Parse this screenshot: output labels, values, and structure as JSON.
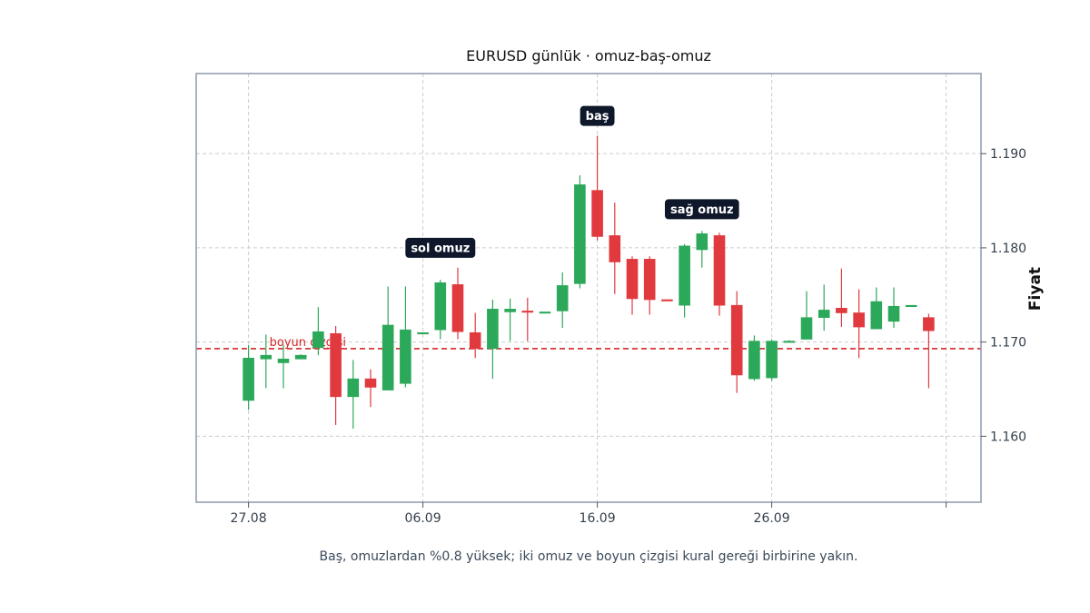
{
  "chart_data": {
    "type": "candlestick",
    "title": "EURUSD günlük · omuz-baş-omuz",
    "xlabel": "",
    "ylabel": "Fiyat",
    "caption": "Baş, omuzlardan %0.8 yüksek; iki omuz ve boyun çizgisi kural gereği birbirine yakın.",
    "x_ticks": [
      {
        "index": 0,
        "label": "27.08"
      },
      {
        "index": 10,
        "label": "06.09"
      },
      {
        "index": 20,
        "label": "16.09"
      },
      {
        "index": 30,
        "label": "26.09"
      },
      {
        "index": 40,
        "label": ""
      }
    ],
    "ylim": [
      1.153,
      1.1985
    ],
    "y_ticks": [
      1.16,
      1.17,
      1.18,
      1.19
    ],
    "y_tick_labels": [
      "1.160",
      "1.170",
      "1.180",
      "1.190"
    ],
    "xlim": [
      -3,
      42
    ],
    "grid": true,
    "neckline": {
      "value": 1.1693,
      "label": "boyun çizgisi",
      "color": "#d62728"
    },
    "annotations": [
      {
        "label": "sol omuz",
        "index": 11,
        "value": 1.18
      },
      {
        "label": "baş",
        "index": 20,
        "value": 1.194
      },
      {
        "label": "sağ omuz",
        "index": 26,
        "value": 1.1841
      }
    ],
    "colors": {
      "up": "#2ca85a",
      "down": "#e03a3e",
      "frame": "#8b98ad",
      "grid": "#cccccc",
      "annotation_bg": "#0f172a"
    },
    "candles": [
      {
        "o": 1.1638,
        "h": 1.1697,
        "l": 1.1628,
        "c": 1.1683
      },
      {
        "o": 1.1682,
        "h": 1.1708,
        "l": 1.1651,
        "c": 1.1686
      },
      {
        "o": 1.1678,
        "h": 1.1697,
        "l": 1.1651,
        "c": 1.1682
      },
      {
        "o": 1.1682,
        "h": 1.1687,
        "l": 1.1682,
        "c": 1.1686
      },
      {
        "o": 1.1694,
        "h": 1.1737,
        "l": 1.1686,
        "c": 1.1711
      },
      {
        "o": 1.1709,
        "h": 1.1717,
        "l": 1.1612,
        "c": 1.1642
      },
      {
        "o": 1.1642,
        "h": 1.1681,
        "l": 1.1608,
        "c": 1.1661
      },
      {
        "o": 1.1661,
        "h": 1.1671,
        "l": 1.1631,
        "c": 1.1652
      },
      {
        "o": 1.1649,
        "h": 1.1759,
        "l": 1.1649,
        "c": 1.1718
      },
      {
        "o": 1.1656,
        "h": 1.1759,
        "l": 1.1652,
        "c": 1.1713
      },
      {
        "o": 1.171,
        "h": 1.171,
        "l": 1.171,
        "c": 1.171
      },
      {
        "o": 1.1713,
        "h": 1.1766,
        "l": 1.1703,
        "c": 1.1763
      },
      {
        "o": 1.1761,
        "h": 1.1779,
        "l": 1.1703,
        "c": 1.1711
      },
      {
        "o": 1.171,
        "h": 1.1731,
        "l": 1.1683,
        "c": 1.1693
      },
      {
        "o": 1.1693,
        "h": 1.1745,
        "l": 1.1661,
        "c": 1.1735
      },
      {
        "o": 1.1732,
        "h": 1.1746,
        "l": 1.1701,
        "c": 1.1735
      },
      {
        "o": 1.1733,
        "h": 1.1747,
        "l": 1.1701,
        "c": 1.1732
      },
      {
        "o": 1.1732,
        "h": 1.1732,
        "l": 1.1732,
        "c": 1.1732
      },
      {
        "o": 1.1733,
        "h": 1.1774,
        "l": 1.1715,
        "c": 1.176
      },
      {
        "o": 1.1762,
        "h": 1.1877,
        "l": 1.1757,
        "c": 1.1867
      },
      {
        "o": 1.1861,
        "h": 1.1919,
        "l": 1.1808,
        "c": 1.1812
      },
      {
        "o": 1.1813,
        "h": 1.1848,
        "l": 1.1751,
        "c": 1.1785
      },
      {
        "o": 1.1788,
        "h": 1.1791,
        "l": 1.1729,
        "c": 1.1746
      },
      {
        "o": 1.1788,
        "h": 1.1791,
        "l": 1.1729,
        "c": 1.1745
      },
      {
        "o": 1.1745,
        "h": 1.1745,
        "l": 1.1744,
        "c": 1.1744
      },
      {
        "o": 1.1739,
        "h": 1.1804,
        "l": 1.1726,
        "c": 1.1802
      },
      {
        "o": 1.1798,
        "h": 1.1818,
        "l": 1.1779,
        "c": 1.1815
      },
      {
        "o": 1.1813,
        "h": 1.1816,
        "l": 1.1728,
        "c": 1.1739
      },
      {
        "o": 1.1739,
        "h": 1.1754,
        "l": 1.1646,
        "c": 1.1665
      },
      {
        "o": 1.1661,
        "h": 1.1707,
        "l": 1.1659,
        "c": 1.1701
      },
      {
        "o": 1.1662,
        "h": 1.1703,
        "l": 1.1659,
        "c": 1.1701
      },
      {
        "o": 1.1701,
        "h": 1.1702,
        "l": 1.1701,
        "c": 1.1701
      },
      {
        "o": 1.1703,
        "h": 1.1754,
        "l": 1.1703,
        "c": 1.1726
      },
      {
        "o": 1.1726,
        "h": 1.1761,
        "l": 1.1712,
        "c": 1.1734
      },
      {
        "o": 1.1736,
        "h": 1.1778,
        "l": 1.1716,
        "c": 1.1731
      },
      {
        "o": 1.1731,
        "h": 1.1756,
        "l": 1.1683,
        "c": 1.1716
      },
      {
        "o": 1.1714,
        "h": 1.1758,
        "l": 1.1714,
        "c": 1.1743
      },
      {
        "o": 1.1722,
        "h": 1.1758,
        "l": 1.1715,
        "c": 1.1738
      },
      {
        "o": 1.1739,
        "h": 1.1739,
        "l": 1.1738,
        "c": 1.1739
      },
      {
        "o": 1.1726,
        "h": 1.173,
        "l": 1.1651,
        "c": 1.1712
      }
    ]
  }
}
